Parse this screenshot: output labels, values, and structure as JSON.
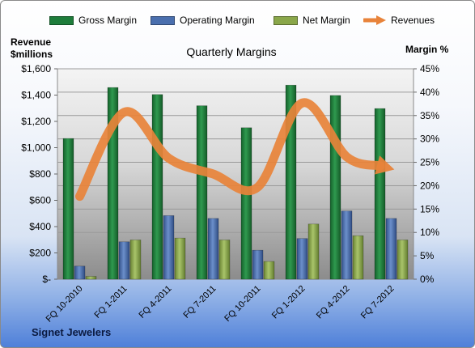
{
  "legend": {
    "gross_label": "Gross Margin",
    "operating_label": "Operating Margin",
    "net_label": "Net Margin",
    "revenues_label": "Revenues"
  },
  "left_axis_label": [
    "Revenue",
    "$millions"
  ],
  "right_axis_label": "Margin %",
  "footer": "Signet Jewelers",
  "colors": {
    "gross": "#1e7d3b",
    "operating": "#4a6fae",
    "net": "#8aa74a",
    "revenues": "#e8833a"
  },
  "chart_data": {
    "type": "bar",
    "title": "Quarterly Margins",
    "categories": [
      "FQ 10-2010",
      "FQ 1-2011",
      "FQ 4-2011",
      "FQ 7-2011",
      "FQ 10-2011",
      "FQ 1-2012",
      "FQ 4-2012",
      "FQ 7-2012"
    ],
    "series": [
      {
        "name": "Gross Margin",
        "axis": "right",
        "values": [
          30.1,
          41.0,
          39.5,
          37.1,
          32.4,
          41.5,
          39.3,
          36.5
        ]
      },
      {
        "name": "Operating Margin",
        "axis": "right",
        "values": [
          2.8,
          8.0,
          13.6,
          13.0,
          6.2,
          8.7,
          14.6,
          13.0
        ]
      },
      {
        "name": "Net Margin",
        "axis": "right",
        "values": [
          0.6,
          8.4,
          8.8,
          8.4,
          3.8,
          11.8,
          9.3,
          8.4
        ]
      },
      {
        "name": "Revenues",
        "type": "line",
        "axis": "left",
        "values": [
          630,
          1270,
          920,
          800,
          700,
          1340,
          930,
          840
        ]
      }
    ],
    "left_axis": {
      "ylim": [
        0,
        1600
      ],
      "ticks": [
        "$-",
        "$200",
        "$400",
        "$600",
        "$800",
        "$1,000",
        "$1,200",
        "$1,400",
        "$1,600"
      ]
    },
    "right_axis": {
      "ylim": [
        0,
        45
      ],
      "ticks": [
        "0%",
        "5%",
        "10%",
        "15%",
        "20%",
        "25%",
        "30%",
        "35%",
        "40%",
        "45%"
      ]
    },
    "grid": true,
    "legend_position": "top"
  }
}
